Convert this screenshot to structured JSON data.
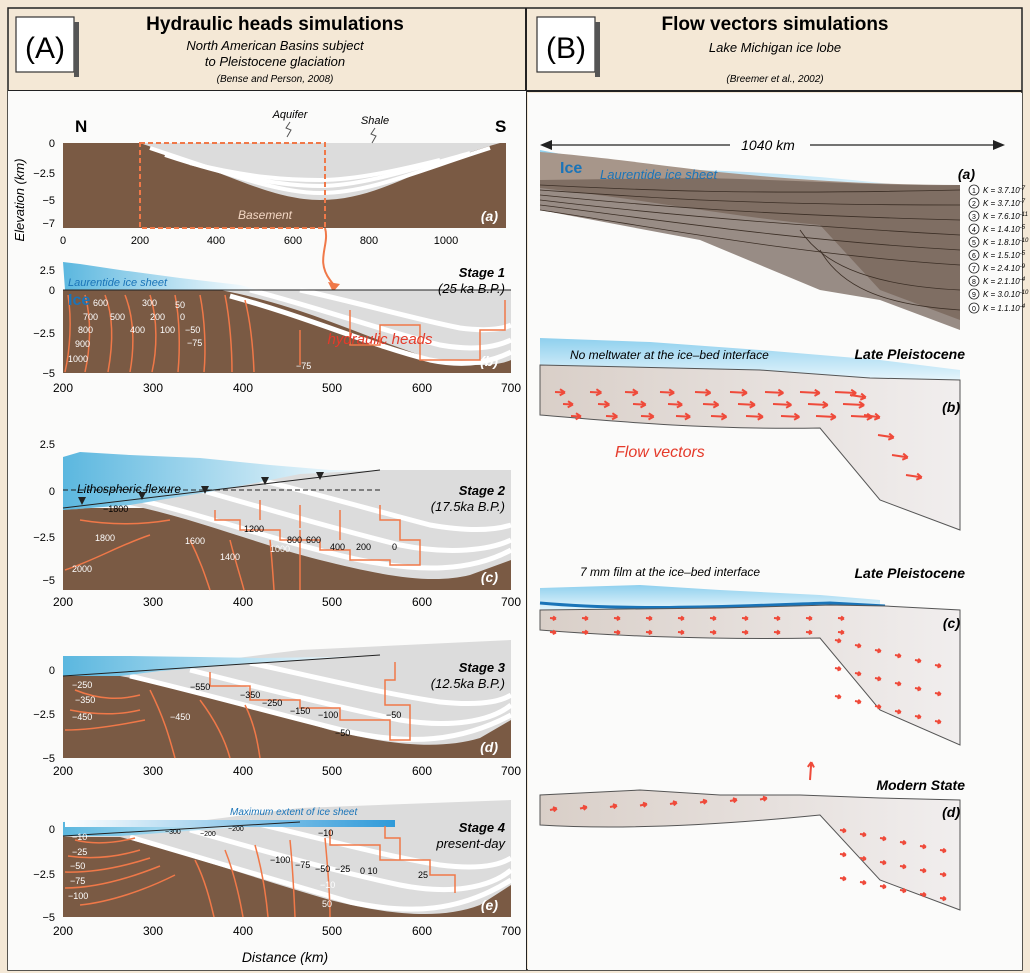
{
  "left": {
    "letter": "(A)",
    "title": "Hydraulic heads simulations",
    "subtitle1": "North American Basins subject",
    "subtitle2": "to Pleistocene glaciation",
    "citation": "(Bense and Person, 2008)",
    "ylabel": "Elevation (km)",
    "xlabel": "Distance (km)",
    "panel_a": {
      "north": "N",
      "south": "S",
      "aquifer": "Aquifer",
      "shale": "Shale",
      "basement": "Basement",
      "tag": "(a)",
      "yticks": [
        "0",
        "−2.5",
        "−5",
        "−7"
      ],
      "xticks": [
        "0",
        "200",
        "400",
        "600",
        "800",
        "1000"
      ]
    },
    "panel_b": {
      "ice_sheet": "Laurentide ice sheet",
      "ice": "Ice",
      "stage": "Stage 1",
      "age": "(25 ka B.P.)",
      "heads_label": "hydraulic heads",
      "tag": "(b)",
      "contours": [
        "600",
        "300",
        "50",
        "700",
        "500",
        "200",
        "0",
        "800",
        "400",
        "100",
        "−50",
        "900",
        "−75",
        "1000",
        "−75"
      ]
    },
    "panel_c": {
      "stage": "Stage 2",
      "age": "(17.5ka B.P.)",
      "flexure": "Lithospheric flexure",
      "tag": "(c)",
      "contours": [
        "−1800",
        "1200",
        "800",
        "600",
        "400",
        "200",
        "0",
        "1800",
        "1600",
        "1000",
        "1400",
        "2000"
      ]
    },
    "panel_d": {
      "stage": "Stage 3",
      "age": "(12.5ka B.P.)",
      "tag": "(d)",
      "contours": [
        "−250",
        "−550",
        "−350",
        "−350",
        "−250",
        "−150",
        "−100",
        "−50",
        "−450",
        "−450",
        "−50"
      ]
    },
    "panel_e": {
      "stage": "Stage 4",
      "age": "present-day",
      "max_extent": "Maximum extent of ice sheet",
      "tag": "(e)",
      "contours": [
        "−10",
        "−25",
        "−50",
        "−75",
        "−100",
        "−300",
        "−200",
        "−200",
        "−10",
        "−100",
        "−75",
        "−50",
        "−25",
        "0 10",
        "25",
        "−10",
        "50"
      ]
    },
    "yticks_stage": [
      "2.5",
      "0",
      "−2.5",
      "−5"
    ],
    "xticks_stage": [
      "200",
      "300",
      "400",
      "500",
      "600",
      "700"
    ]
  },
  "right": {
    "letter": "(B)",
    "title": "Flow vectors simulations",
    "subtitle": "Lake Michigan ice lobe",
    "citation": "(Breemer et al., 2002)",
    "panel_a": {
      "distance": "1040 km",
      "ice": "Ice",
      "ice_sheet": "Laurentide ice sheet",
      "tag": "(a)",
      "layers": [
        "1",
        "2",
        "3",
        "4",
        "5",
        "6",
        "7",
        "8",
        "9",
        "0"
      ],
      "k_values": [
        "K = 3.7.10",
        "K = 3.7.10",
        "K = 7.6.10",
        "K = 1.4.10",
        "K = 1.8.10",
        "K = 1.5.10",
        "K = 2.4.10",
        "K = 2.1.10",
        "K = 3.0.10",
        "K = 1.1.10"
      ],
      "k_exps": [
        "-7",
        "-7",
        "-11",
        "-5",
        "-10",
        "-5",
        "-9",
        "-4",
        "-10",
        "-4"
      ]
    },
    "panel_b": {
      "note": "No meltwater at the ice–bed interface",
      "period": "Late Pleistocene",
      "tag": "(b)",
      "flow": "Flow vectors"
    },
    "panel_c": {
      "note": "7 mm film at the ice–bed interface",
      "period": "Late Pleistocene",
      "tag": "(c)"
    },
    "panel_d": {
      "period": "Modern State",
      "tag": "(d)"
    }
  },
  "colors": {
    "background": "#f4e8d6",
    "basement": "#7a5a44",
    "sediment": "#dcdcdc",
    "contour": "#f07848",
    "ice": "#5bb7df",
    "label_blue": "#1a74b8",
    "heads_red": "#e53a2a"
  }
}
